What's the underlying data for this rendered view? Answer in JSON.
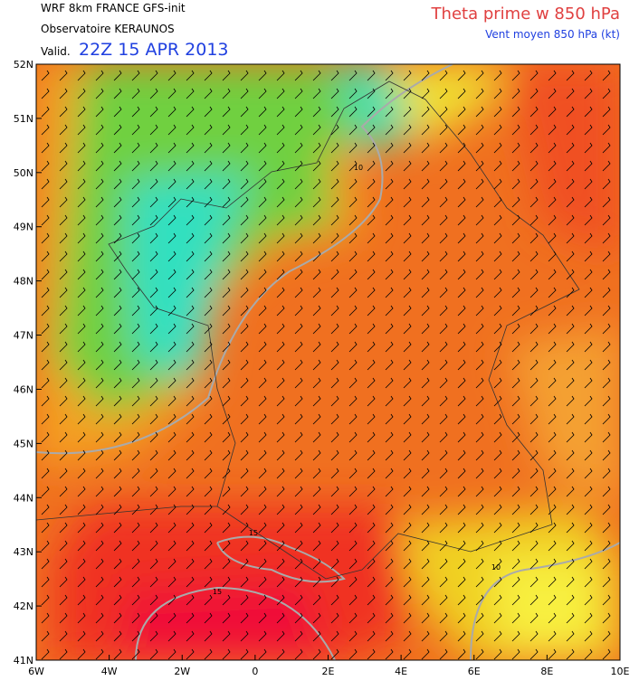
{
  "header": {
    "model": "WRF 8km FRANCE  GFS-init",
    "source": "Observatoire KERAUNOS",
    "valid_prefix": "Valid.",
    "valid_time": "22Z 15 APR 2013",
    "title": "Theta prime w 850 hPa",
    "subtitle": "Vent moyen 850 hPa (kt)"
  },
  "axes": {
    "lat_labels": [
      "52N",
      "51N",
      "50N",
      "49N",
      "48N",
      "47N",
      "46N",
      "45N",
      "44N",
      "43N",
      "42N",
      "41N"
    ],
    "lon_labels": [
      "6W",
      "4W",
      "2W",
      "0",
      "2E",
      "4E",
      "6E",
      "8E",
      "10E"
    ]
  },
  "contour_labels": [
    "10",
    "10",
    "15",
    "15"
  ]
}
